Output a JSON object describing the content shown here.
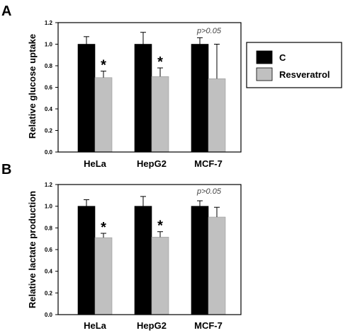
{
  "legend": [
    {
      "label": "C",
      "color": "#000000"
    },
    {
      "label": "Resveratrol",
      "color": "#c0c0c0"
    }
  ],
  "chart_data": [
    {
      "type": "bar",
      "panel": "A",
      "categories": [
        "HeLa",
        "HepG2",
        "MCF-7"
      ],
      "series": [
        {
          "name": "C",
          "values": [
            1.0,
            1.0,
            1.0
          ],
          "errors": [
            0.07,
            0.11,
            0.06
          ]
        },
        {
          "name": "Resveratrol",
          "values": [
            0.69,
            0.7,
            0.68
          ],
          "errors": [
            0.06,
            0.08,
            0.32
          ]
        }
      ],
      "ylabel": "Relative glucose uptake",
      "ylim": [
        0,
        1.2
      ],
      "yticks": [
        "0.0",
        "0.2",
        "0.4",
        "0.6",
        "0.8",
        "1.0",
        "1.2"
      ],
      "significance": [
        "*",
        "*",
        ""
      ],
      "annotation": "p>0.05",
      "legend_position": "right"
    },
    {
      "type": "bar",
      "panel": "B",
      "categories": [
        "HeLa",
        "HepG2",
        "MCF-7"
      ],
      "series": [
        {
          "name": "C",
          "values": [
            1.0,
            1.0,
            1.0
          ],
          "errors": [
            0.06,
            0.09,
            0.05
          ]
        },
        {
          "name": "Resveratrol",
          "values": [
            0.71,
            0.715,
            0.9
          ],
          "errors": [
            0.04,
            0.05,
            0.09
          ]
        }
      ],
      "ylabel": "Relative lactate production",
      "ylim": [
        0,
        1.2
      ],
      "yticks": [
        "0.0",
        "0.2",
        "0.4",
        "0.6",
        "0.8",
        "1.0",
        "1.2"
      ],
      "significance": [
        "*",
        "*",
        ""
      ],
      "annotation": "p>0.05"
    }
  ]
}
